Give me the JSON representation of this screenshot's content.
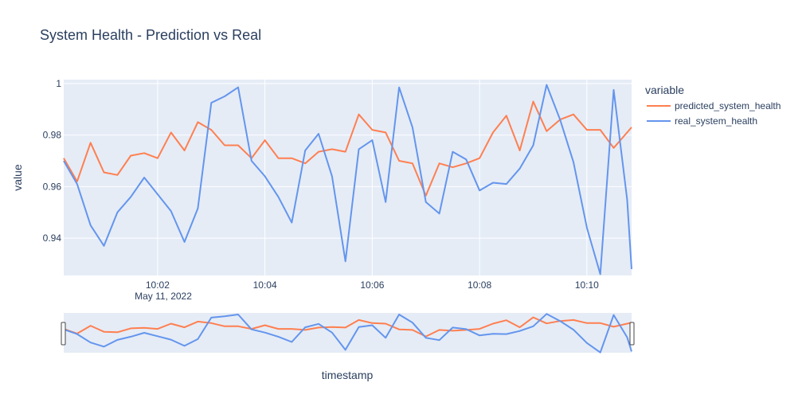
{
  "colors": {
    "plot_bg": "#e5ecf6",
    "grid": "#ffffff",
    "text": "#2a3f5f",
    "predicted": "#ff7f50",
    "real": "#6495ed"
  },
  "chart_data": {
    "type": "line",
    "title": "System Health - Prediction vs Real",
    "xlabel": "timestamp",
    "ylabel": "value",
    "ylim": [
      0.9255,
      1.0015
    ],
    "xlim": [
      "2022-05-11 10:00:15",
      "2022-05-11 10:10:50"
    ],
    "x_ticks": [
      "10:02",
      "10:04",
      "10:06",
      "10:08",
      "10:10"
    ],
    "x_date_label": "May 11, 2022",
    "y_ticks": [
      "0.94",
      "0.96",
      "0.98",
      "1"
    ],
    "grid": true,
    "legend_title": "variable",
    "legend_position": "top-right, outside plot",
    "rangeslider": true,
    "x": [
      "10:00:15",
      "10:00:30",
      "10:00:45",
      "10:01:00",
      "10:01:15",
      "10:01:30",
      "10:01:45",
      "10:02:00",
      "10:02:15",
      "10:02:30",
      "10:02:45",
      "10:03:00",
      "10:03:15",
      "10:03:30",
      "10:03:45",
      "10:04:00",
      "10:04:15",
      "10:04:30",
      "10:04:45",
      "10:05:00",
      "10:05:15",
      "10:05:30",
      "10:05:45",
      "10:06:00",
      "10:06:15",
      "10:06:30",
      "10:06:45",
      "10:07:00",
      "10:07:15",
      "10:07:30",
      "10:07:45",
      "10:08:00",
      "10:08:15",
      "10:08:30",
      "10:08:45",
      "10:09:00",
      "10:09:15",
      "10:09:30",
      "10:09:45",
      "10:10:00",
      "10:10:15",
      "10:10:30",
      "10:10:45",
      "10:10:50"
    ],
    "series": [
      {
        "name": "predicted_system_health",
        "values": [
          0.971,
          0.962,
          0.977,
          0.9655,
          0.9645,
          0.972,
          0.973,
          0.971,
          0.981,
          0.974,
          0.985,
          0.982,
          0.976,
          0.976,
          0.971,
          0.978,
          0.971,
          0.971,
          0.969,
          0.9735,
          0.9745,
          0.9735,
          0.988,
          0.982,
          0.981,
          0.97,
          0.969,
          0.9565,
          0.969,
          0.9675,
          0.969,
          0.971,
          0.981,
          0.9875,
          0.974,
          0.993,
          0.9815,
          0.986,
          0.988,
          0.982,
          0.982,
          0.975,
          0.981,
          0.983
        ]
      },
      {
        "name": "real_system_health",
        "values": [
          0.97,
          0.961,
          0.945,
          0.937,
          0.95,
          0.956,
          0.9635,
          0.957,
          0.9505,
          0.9385,
          0.9515,
          0.9925,
          0.995,
          0.9985,
          0.97,
          0.964,
          0.956,
          0.946,
          0.974,
          0.9805,
          0.964,
          0.931,
          0.9745,
          0.978,
          0.954,
          0.9985,
          0.983,
          0.954,
          0.9495,
          0.9735,
          0.9705,
          0.9585,
          0.9615,
          0.961,
          0.967,
          0.976,
          0.9995,
          0.986,
          0.9695,
          0.944,
          0.926,
          0.9975,
          0.955,
          0.928
        ]
      }
    ]
  }
}
